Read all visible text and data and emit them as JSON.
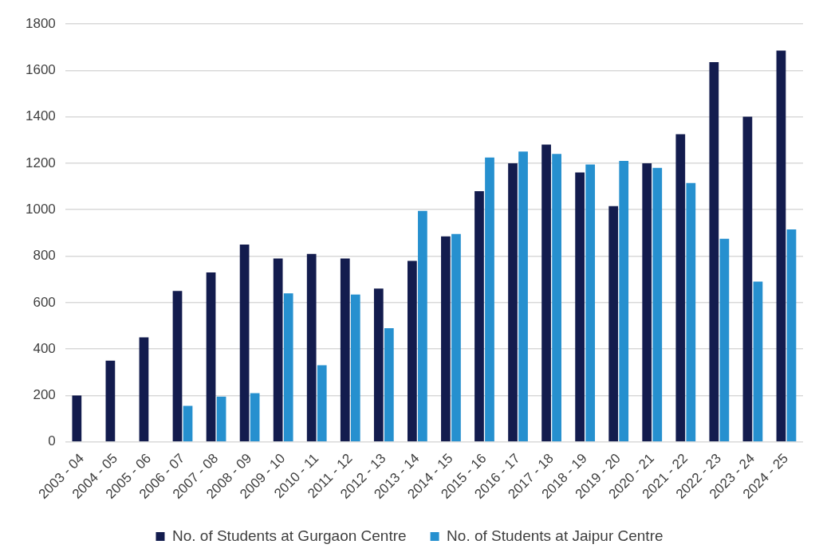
{
  "chart_data": {
    "type": "bar",
    "categories": [
      "2003 - 04",
      "2004 - 05",
      "2005 - 06",
      "2006 - 07",
      "2007 - 08",
      "2008 - 09",
      "2009 - 10",
      "2010 - 11",
      "2011 - 12",
      "2012 - 13",
      "2013 - 14",
      "2014 - 15",
      "2015 - 16",
      "2016 - 17",
      "2017 - 18",
      "2018 - 19",
      "2019 - 20",
      "2020 - 21",
      "2021 - 22",
      "2022 - 23",
      "2023 - 24",
      "2024 - 25"
    ],
    "series": [
      {
        "name": "No. of Students at Gurgaon Centre",
        "color": "#131c4e",
        "values": [
          200,
          350,
          450,
          650,
          730,
          850,
          790,
          810,
          790,
          660,
          780,
          885,
          1080,
          1200,
          1280,
          1160,
          1015,
          1200,
          1325,
          1635,
          1400,
          1685
        ]
      },
      {
        "name": "No. of Students at Jaipur Centre",
        "color": "#2690cf",
        "values": [
          null,
          null,
          null,
          155,
          195,
          210,
          640,
          330,
          635,
          490,
          995,
          895,
          1225,
          1250,
          1240,
          1195,
          1210,
          1180,
          1115,
          875,
          690,
          915
        ]
      }
    ],
    "ylim": [
      0,
      1800
    ],
    "yticks": [
      0,
      200,
      400,
      600,
      800,
      1000,
      1200,
      1400,
      1600,
      1800
    ],
    "grid": "y",
    "legend": "bottom"
  }
}
